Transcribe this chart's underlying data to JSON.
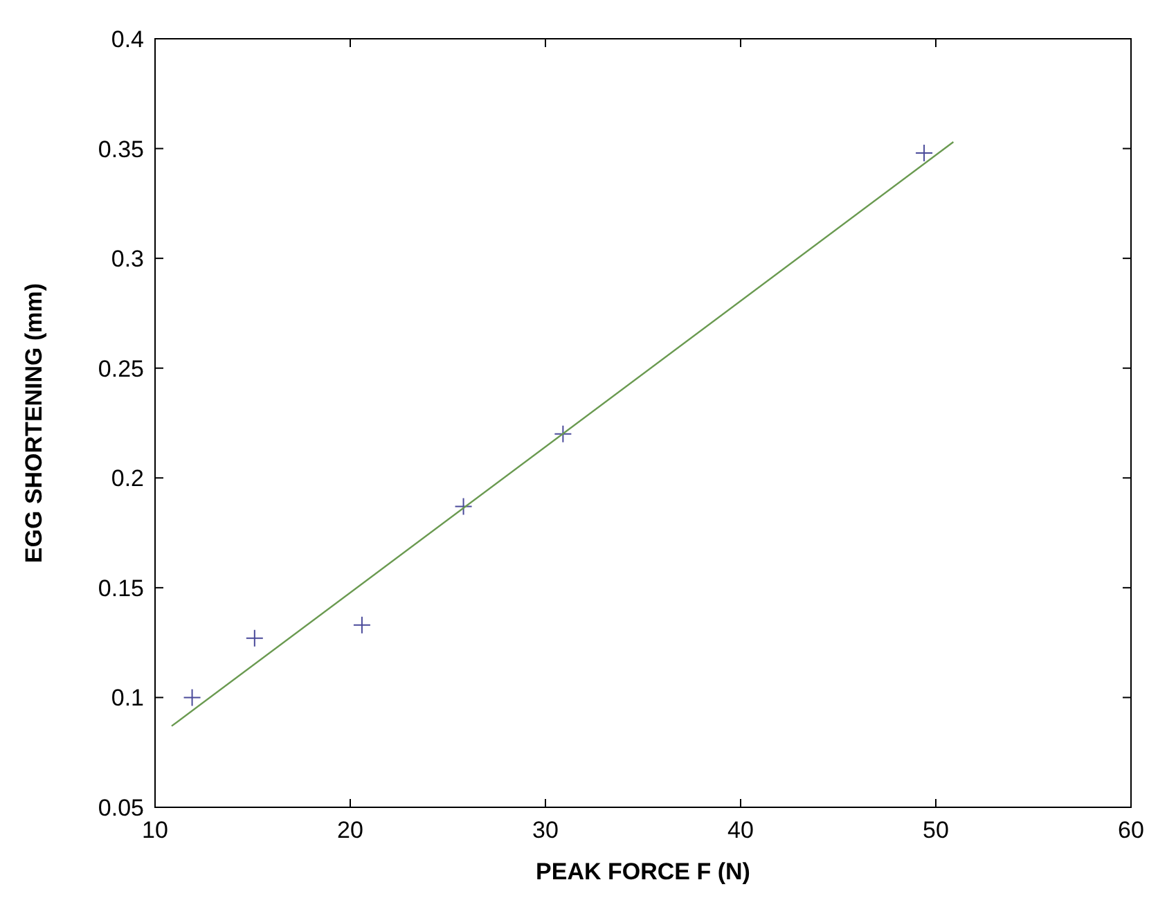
{
  "chart_data": {
    "type": "scatter",
    "xlabel": "PEAK FORCE F (N)",
    "ylabel": "EGG SHORTENING (mm)",
    "xlim": [
      10,
      60
    ],
    "ylim": [
      0.05,
      0.4
    ],
    "xticks": [
      10,
      20,
      30,
      40,
      50,
      60
    ],
    "yticks": [
      0.05,
      0.1,
      0.15,
      0.2,
      0.25,
      0.3,
      0.35,
      0.4
    ],
    "grid": false,
    "series": [
      {
        "type": "scatter",
        "marker": "cross",
        "color": "#4a4a9a",
        "x": [
          11.9,
          15.1,
          20.6,
          25.8,
          30.9,
          49.4
        ],
        "values": [
          0.1,
          0.127,
          0.133,
          0.187,
          0.22,
          0.348
        ]
      },
      {
        "type": "line",
        "color": "#6a9a50",
        "x": [
          10.85,
          50.9
        ],
        "values": [
          0.087,
          0.353
        ]
      }
    ]
  }
}
